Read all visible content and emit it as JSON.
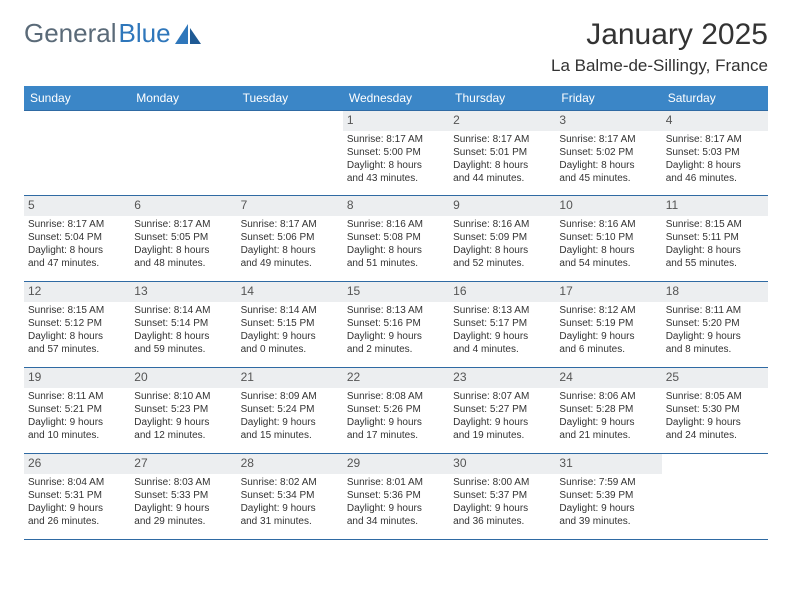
{
  "brand": {
    "word1": "General",
    "word2": "Blue"
  },
  "header": {
    "title": "January 2025",
    "location": "La Balme-de-Sillingy, France"
  },
  "colors": {
    "header_bg": "#3b86c7",
    "header_fg": "#ffffff",
    "daynum_bg": "#eceef0",
    "border": "#2f6aa3",
    "brand_gray": "#5a6a78",
    "brand_blue": "#2f77bb",
    "text": "#333333"
  },
  "dow": [
    "Sunday",
    "Monday",
    "Tuesday",
    "Wednesday",
    "Thursday",
    "Friday",
    "Saturday"
  ],
  "layout": {
    "blank_leading": 3,
    "days_in_month": 31
  },
  "days": {
    "1": {
      "sunrise": "8:17 AM",
      "sunset": "5:00 PM",
      "dlh": 8,
      "dlm": 43
    },
    "2": {
      "sunrise": "8:17 AM",
      "sunset": "5:01 PM",
      "dlh": 8,
      "dlm": 44
    },
    "3": {
      "sunrise": "8:17 AM",
      "sunset": "5:02 PM",
      "dlh": 8,
      "dlm": 45
    },
    "4": {
      "sunrise": "8:17 AM",
      "sunset": "5:03 PM",
      "dlh": 8,
      "dlm": 46
    },
    "5": {
      "sunrise": "8:17 AM",
      "sunset": "5:04 PM",
      "dlh": 8,
      "dlm": 47
    },
    "6": {
      "sunrise": "8:17 AM",
      "sunset": "5:05 PM",
      "dlh": 8,
      "dlm": 48
    },
    "7": {
      "sunrise": "8:17 AM",
      "sunset": "5:06 PM",
      "dlh": 8,
      "dlm": 49
    },
    "8": {
      "sunrise": "8:16 AM",
      "sunset": "5:08 PM",
      "dlh": 8,
      "dlm": 51
    },
    "9": {
      "sunrise": "8:16 AM",
      "sunset": "5:09 PM",
      "dlh": 8,
      "dlm": 52
    },
    "10": {
      "sunrise": "8:16 AM",
      "sunset": "5:10 PM",
      "dlh": 8,
      "dlm": 54
    },
    "11": {
      "sunrise": "8:15 AM",
      "sunset": "5:11 PM",
      "dlh": 8,
      "dlm": 55
    },
    "12": {
      "sunrise": "8:15 AM",
      "sunset": "5:12 PM",
      "dlh": 8,
      "dlm": 57
    },
    "13": {
      "sunrise": "8:14 AM",
      "sunset": "5:14 PM",
      "dlh": 8,
      "dlm": 59
    },
    "14": {
      "sunrise": "8:14 AM",
      "sunset": "5:15 PM",
      "dlh": 9,
      "dlm": 0
    },
    "15": {
      "sunrise": "8:13 AM",
      "sunset": "5:16 PM",
      "dlh": 9,
      "dlm": 2
    },
    "16": {
      "sunrise": "8:13 AM",
      "sunset": "5:17 PM",
      "dlh": 9,
      "dlm": 4
    },
    "17": {
      "sunrise": "8:12 AM",
      "sunset": "5:19 PM",
      "dlh": 9,
      "dlm": 6
    },
    "18": {
      "sunrise": "8:11 AM",
      "sunset": "5:20 PM",
      "dlh": 9,
      "dlm": 8
    },
    "19": {
      "sunrise": "8:11 AM",
      "sunset": "5:21 PM",
      "dlh": 9,
      "dlm": 10
    },
    "20": {
      "sunrise": "8:10 AM",
      "sunset": "5:23 PM",
      "dlh": 9,
      "dlm": 12
    },
    "21": {
      "sunrise": "8:09 AM",
      "sunset": "5:24 PM",
      "dlh": 9,
      "dlm": 15
    },
    "22": {
      "sunrise": "8:08 AM",
      "sunset": "5:26 PM",
      "dlh": 9,
      "dlm": 17
    },
    "23": {
      "sunrise": "8:07 AM",
      "sunset": "5:27 PM",
      "dlh": 9,
      "dlm": 19
    },
    "24": {
      "sunrise": "8:06 AM",
      "sunset": "5:28 PM",
      "dlh": 9,
      "dlm": 21
    },
    "25": {
      "sunrise": "8:05 AM",
      "sunset": "5:30 PM",
      "dlh": 9,
      "dlm": 24
    },
    "26": {
      "sunrise": "8:04 AM",
      "sunset": "5:31 PM",
      "dlh": 9,
      "dlm": 26
    },
    "27": {
      "sunrise": "8:03 AM",
      "sunset": "5:33 PM",
      "dlh": 9,
      "dlm": 29
    },
    "28": {
      "sunrise": "8:02 AM",
      "sunset": "5:34 PM",
      "dlh": 9,
      "dlm": 31
    },
    "29": {
      "sunrise": "8:01 AM",
      "sunset": "5:36 PM",
      "dlh": 9,
      "dlm": 34
    },
    "30": {
      "sunrise": "8:00 AM",
      "sunset": "5:37 PM",
      "dlh": 9,
      "dlm": 36
    },
    "31": {
      "sunrise": "7:59 AM",
      "sunset": "5:39 PM",
      "dlh": 9,
      "dlm": 39
    }
  },
  "labels": {
    "sunrise": "Sunrise: ",
    "sunset": "Sunset: ",
    "daylight_prefix": "Daylight: ",
    "hours_word": " hours",
    "and_word": "and ",
    "minutes_word": " minutes."
  }
}
